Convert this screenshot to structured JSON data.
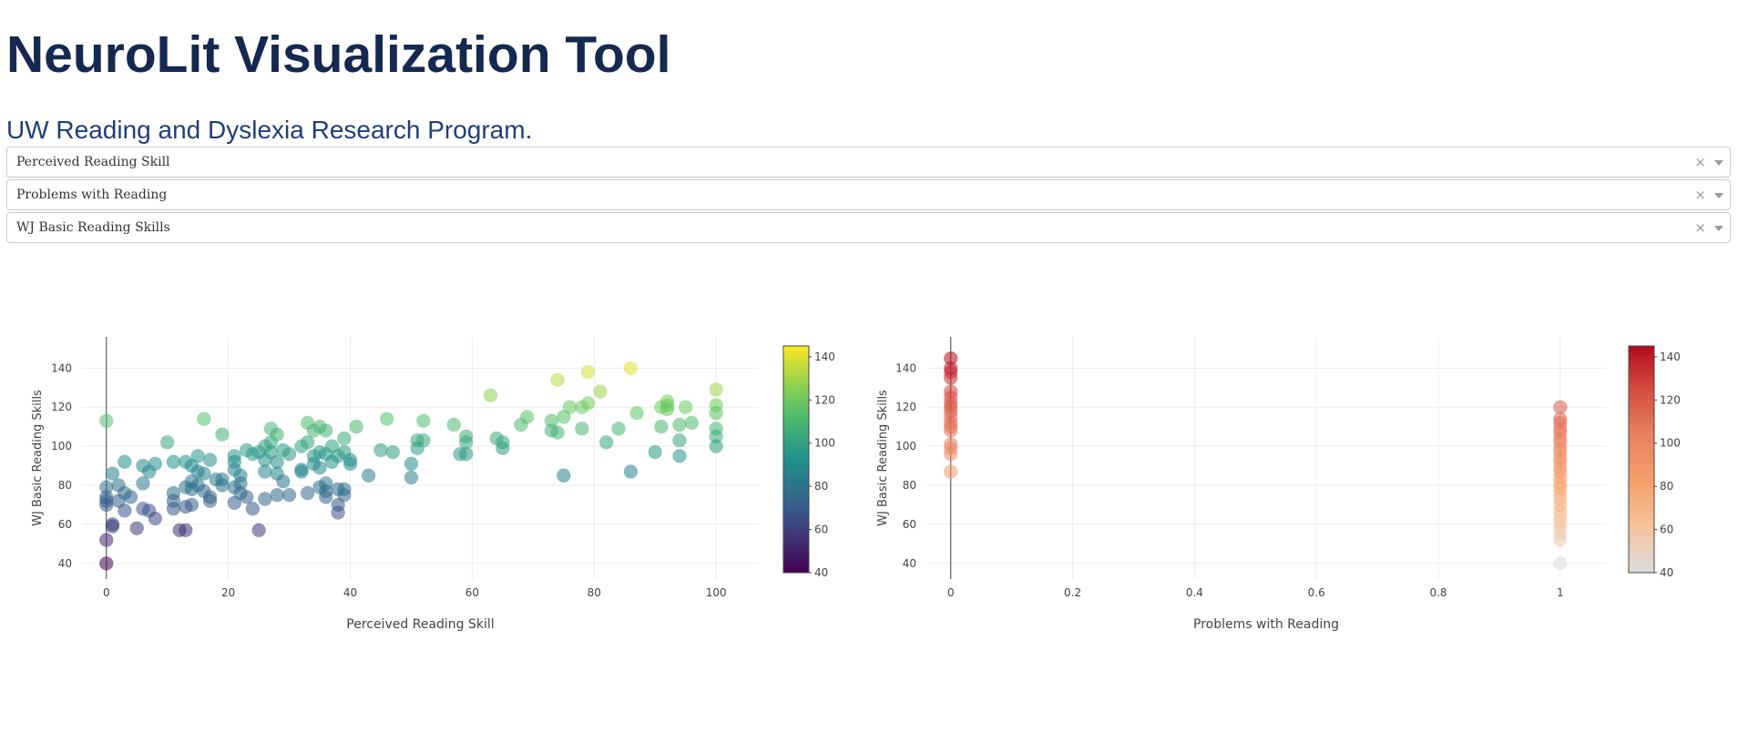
{
  "header": {
    "title": "NeuroLit Visualization Tool",
    "subtitle": "UW Reading and Dyslexia Research Program."
  },
  "dropdowns": [
    {
      "value": "Perceived Reading Skill"
    },
    {
      "value": "Problems with Reading"
    },
    {
      "value": "WJ Basic Reading Skills"
    }
  ],
  "icons": {
    "clear": "×"
  },
  "chart_data": [
    {
      "type": "scatter",
      "xlabel": "Perceived Reading Skill",
      "ylabel": "WJ Basic Reading Skills",
      "xlim": [
        -4,
        107
      ],
      "ylim": [
        32,
        156
      ],
      "xticks": [
        0,
        20,
        40,
        60,
        80,
        100
      ],
      "yticks": [
        40,
        60,
        80,
        100,
        120,
        140
      ],
      "grid": true,
      "colorscale": "viridis",
      "colorbar": {
        "range": [
          40,
          145
        ],
        "ticks": [
          40,
          60,
          80,
          100,
          120,
          140
        ]
      },
      "points": [
        [
          0,
          113
        ],
        [
          0,
          79
        ],
        [
          0,
          74
        ],
        [
          0,
          72
        ],
        [
          0,
          70
        ],
        [
          0,
          52
        ],
        [
          0,
          40
        ],
        [
          1,
          86
        ],
        [
          1,
          60
        ],
        [
          1,
          59
        ],
        [
          2,
          80
        ],
        [
          2,
          72
        ],
        [
          3,
          92
        ],
        [
          3,
          76
        ],
        [
          3,
          67
        ],
        [
          4,
          74
        ],
        [
          5,
          58
        ],
        [
          6,
          90
        ],
        [
          6,
          81
        ],
        [
          6,
          68
        ],
        [
          7,
          87
        ],
        [
          7,
          67
        ],
        [
          8,
          91
        ],
        [
          8,
          63
        ],
        [
          10,
          102
        ],
        [
          11,
          92
        ],
        [
          11,
          76
        ],
        [
          11,
          72
        ],
        [
          11,
          68
        ],
        [
          12,
          57
        ],
        [
          13,
          92
        ],
        [
          13,
          79
        ],
        [
          13,
          69
        ],
        [
          13,
          57
        ],
        [
          14,
          90
        ],
        [
          14,
          82
        ],
        [
          14,
          78
        ],
        [
          14,
          70
        ],
        [
          15,
          95
        ],
        [
          15,
          87
        ],
        [
          15,
          80
        ],
        [
          16,
          114
        ],
        [
          16,
          86
        ],
        [
          16,
          77
        ],
        [
          17,
          93
        ],
        [
          17,
          74
        ],
        [
          17,
          72
        ],
        [
          18,
          83
        ],
        [
          19,
          106
        ],
        [
          19,
          83
        ],
        [
          19,
          80
        ],
        [
          21,
          95
        ],
        [
          21,
          92
        ],
        [
          21,
          88
        ],
        [
          21,
          79
        ],
        [
          21,
          71
        ],
        [
          22,
          85
        ],
        [
          22,
          81
        ],
        [
          22,
          76
        ],
        [
          23,
          98
        ],
        [
          23,
          74
        ],
        [
          24,
          96
        ],
        [
          24,
          68
        ],
        [
          25,
          97
        ],
        [
          25,
          57
        ],
        [
          26,
          100
        ],
        [
          26,
          93
        ],
        [
          26,
          87
        ],
        [
          26,
          73
        ],
        [
          27,
          109
        ],
        [
          27,
          102
        ],
        [
          27,
          97
        ],
        [
          28,
          106
        ],
        [
          28,
          92
        ],
        [
          28,
          86
        ],
        [
          28,
          75
        ],
        [
          29,
          98
        ],
        [
          29,
          82
        ],
        [
          30,
          96
        ],
        [
          30,
          75
        ],
        [
          32,
          100
        ],
        [
          32,
          88
        ],
        [
          32,
          87
        ],
        [
          33,
          112
        ],
        [
          33,
          102
        ],
        [
          33,
          76
        ],
        [
          34,
          108
        ],
        [
          34,
          95
        ],
        [
          34,
          91
        ],
        [
          35,
          110
        ],
        [
          35,
          97
        ],
        [
          35,
          89
        ],
        [
          35,
          79
        ],
        [
          36,
          108
        ],
        [
          36,
          96
        ],
        [
          36,
          81
        ],
        [
          36,
          77
        ],
        [
          36,
          74
        ],
        [
          37,
          100
        ],
        [
          37,
          92
        ],
        [
          38,
          95
        ],
        [
          38,
          78
        ],
        [
          38,
          70
        ],
        [
          38,
          66
        ],
        [
          39,
          104
        ],
        [
          39,
          97
        ],
        [
          39,
          78
        ],
        [
          39,
          75
        ],
        [
          40,
          93
        ],
        [
          40,
          91
        ],
        [
          41,
          110
        ],
        [
          43,
          85
        ],
        [
          45,
          98
        ],
        [
          46,
          114
        ],
        [
          47,
          97
        ],
        [
          50,
          91
        ],
        [
          50,
          84
        ],
        [
          51,
          103
        ],
        [
          51,
          99
        ],
        [
          52,
          113
        ],
        [
          52,
          103
        ],
        [
          57,
          111
        ],
        [
          58,
          96
        ],
        [
          59,
          105
        ],
        [
          59,
          102
        ],
        [
          59,
          96
        ],
        [
          63,
          126
        ],
        [
          64,
          104
        ],
        [
          65,
          102
        ],
        [
          65,
          99
        ],
        [
          68,
          111
        ],
        [
          69,
          115
        ],
        [
          73,
          113
        ],
        [
          73,
          108
        ],
        [
          74,
          134
        ],
        [
          74,
          107
        ],
        [
          75,
          115
        ],
        [
          75,
          85
        ],
        [
          76,
          120
        ],
        [
          78,
          120
        ],
        [
          78,
          109
        ],
        [
          79,
          138
        ],
        [
          79,
          122
        ],
        [
          81,
          128
        ],
        [
          82,
          102
        ],
        [
          84,
          109
        ],
        [
          86,
          140
        ],
        [
          86,
          87
        ],
        [
          87,
          117
        ],
        [
          90,
          97
        ],
        [
          91,
          120
        ],
        [
          91,
          110
        ],
        [
          92,
          123
        ],
        [
          92,
          121
        ],
        [
          92,
          119
        ],
        [
          94,
          111
        ],
        [
          94,
          103
        ],
        [
          94,
          95
        ],
        [
          95,
          120
        ],
        [
          96,
          112
        ],
        [
          100,
          129
        ],
        [
          100,
          121
        ],
        [
          100,
          117
        ],
        [
          100,
          109
        ],
        [
          100,
          105
        ],
        [
          100,
          100
        ]
      ]
    },
    {
      "type": "scatter",
      "xlabel": "Problems with Reading",
      "ylabel": "WJ Basic Reading Skills",
      "xlim": [
        -0.04,
        1.075
      ],
      "ylim": [
        32,
        156
      ],
      "xticks": [
        0,
        0.2,
        0.4,
        0.6,
        0.8,
        1
      ],
      "yticks": [
        40,
        60,
        80,
        100,
        120,
        140
      ],
      "grid": true,
      "colorscale": "reds",
      "colorbar": {
        "range": [
          40,
          145
        ],
        "ticks": [
          40,
          60,
          80,
          100,
          120,
          140
        ]
      },
      "points": [
        [
          0,
          145
        ],
        [
          0,
          140
        ],
        [
          0,
          138
        ],
        [
          0,
          135
        ],
        [
          0,
          128
        ],
        [
          0,
          125
        ],
        [
          0,
          122
        ],
        [
          0,
          120
        ],
        [
          0,
          118
        ],
        [
          0,
          115
        ],
        [
          0,
          112
        ],
        [
          0,
          110
        ],
        [
          0,
          108
        ],
        [
          0,
          101
        ],
        [
          0,
          99
        ],
        [
          0,
          96
        ],
        [
          0,
          87
        ],
        [
          1,
          120
        ],
        [
          1,
          114
        ],
        [
          1,
          112
        ],
        [
          1,
          109
        ],
        [
          1,
          107
        ],
        [
          1,
          104
        ],
        [
          1,
          102
        ],
        [
          1,
          99
        ],
        [
          1,
          97
        ],
        [
          1,
          94
        ],
        [
          1,
          92
        ],
        [
          1,
          89
        ],
        [
          1,
          87
        ],
        [
          1,
          84
        ],
        [
          1,
          81
        ],
        [
          1,
          79
        ],
        [
          1,
          76
        ],
        [
          1,
          73
        ],
        [
          1,
          70
        ],
        [
          1,
          67
        ],
        [
          1,
          64
        ],
        [
          1,
          61
        ],
        [
          1,
          58
        ],
        [
          1,
          55
        ],
        [
          1,
          52
        ],
        [
          1,
          40
        ]
      ]
    }
  ]
}
